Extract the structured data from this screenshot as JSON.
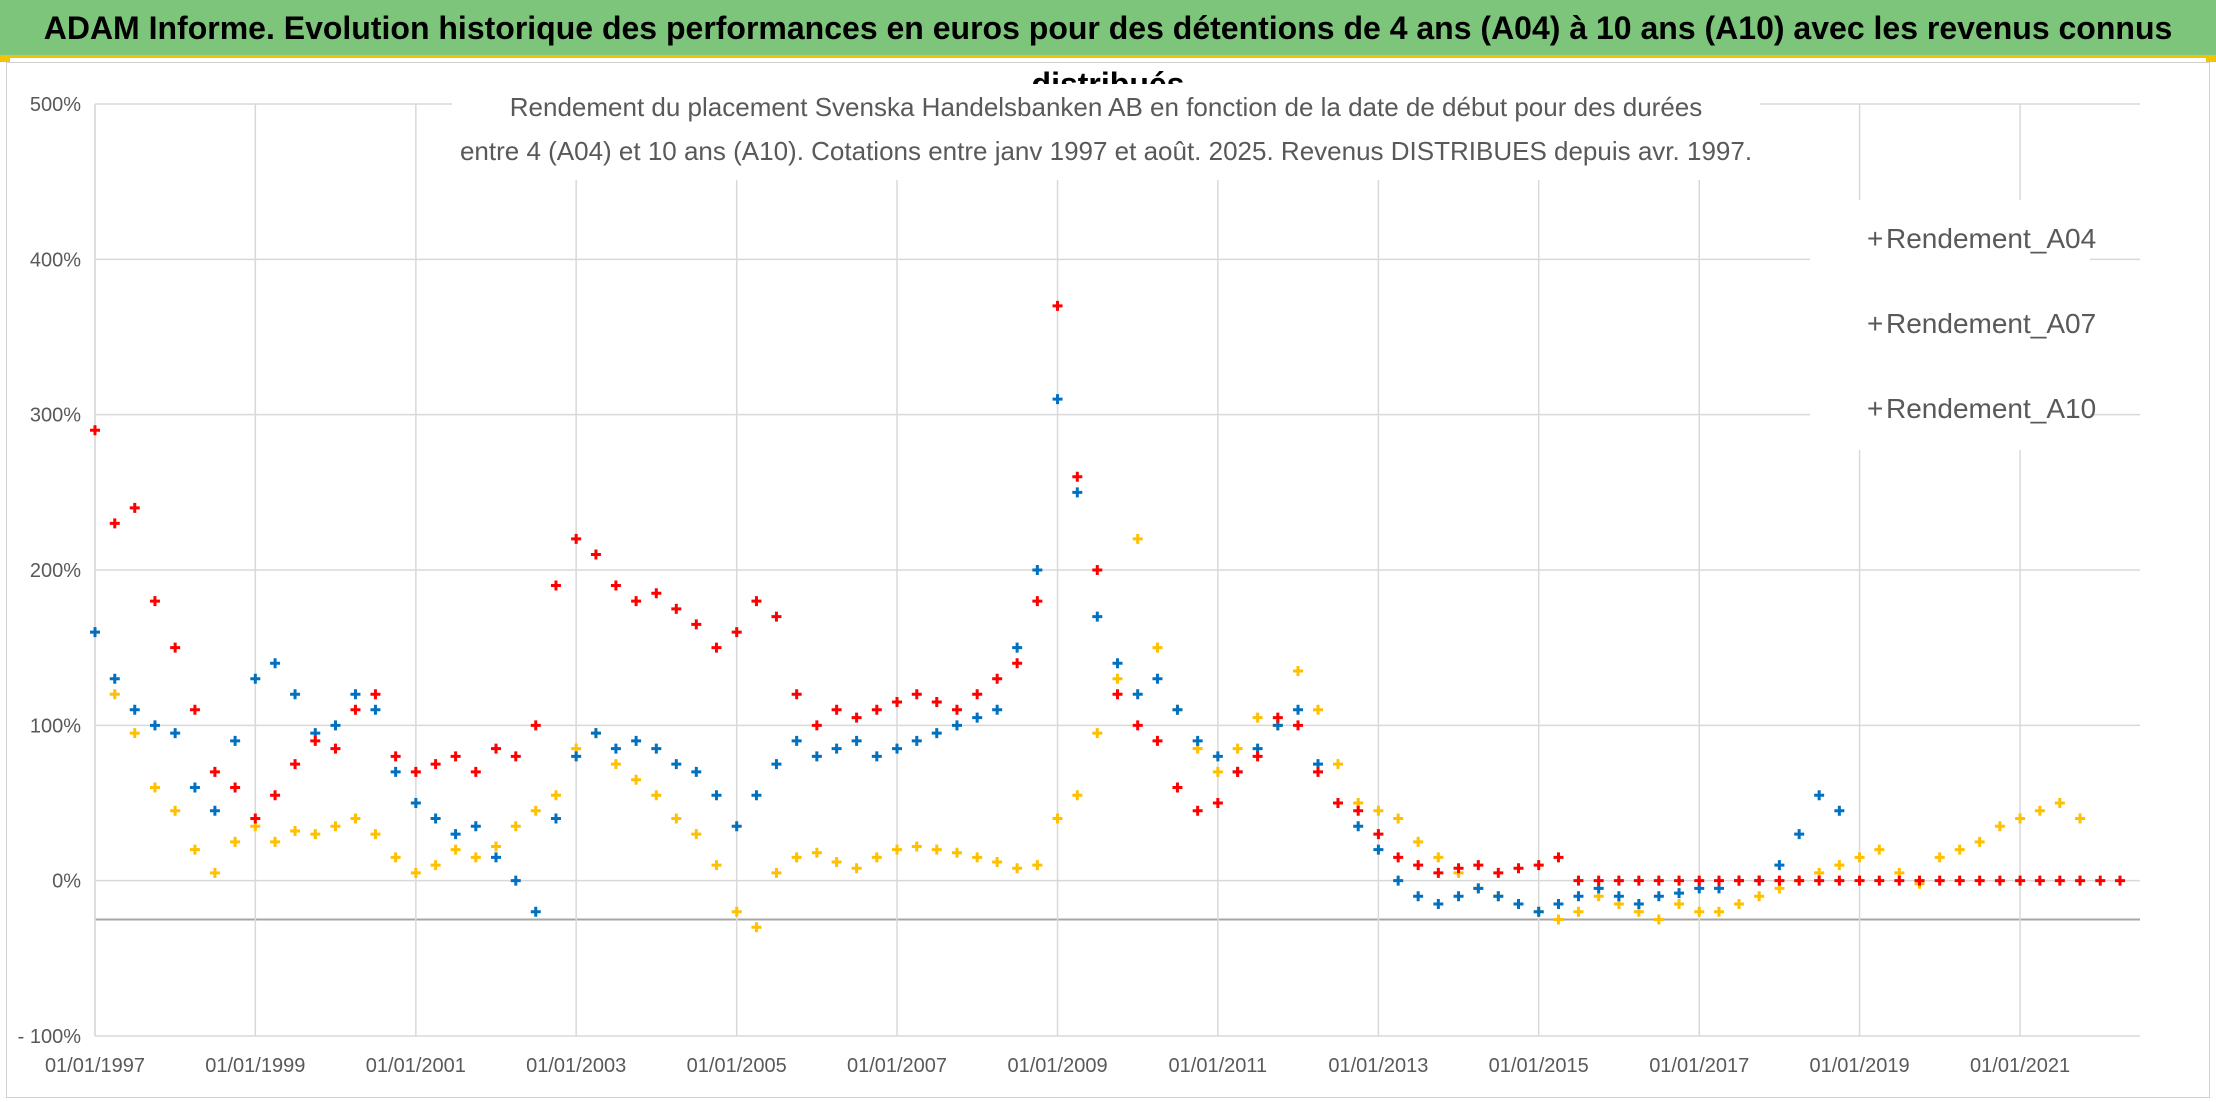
{
  "banner": {
    "title": "ADAM Informe. Evolution historique des performances en euros pour des détentions de 4 ans (A04) à 10 ans (A10) avec les revenus connus distribués"
  },
  "colors": {
    "banner_bg": "#7cc57a",
    "accent": "#f2c300",
    "A04": "#ffc000",
    "A07": "#0070c0",
    "A10": "#ff0000",
    "grid": "#d9d9d9",
    "text": "#595959"
  },
  "chart_data": {
    "type": "scatter",
    "title": [
      "Rendement du placement Svenska Handelsbanken AB en fonction de la date de début pour des durées",
      "entre 4 (A04) et 10 ans (A10). Cotations entre janv 1997 et août. 2025. Revenus DISTRIBUES depuis avr. 1997."
    ],
    "xlabel": "",
    "ylabel": "",
    "x_range": [
      "1997-01-01",
      "2022-07-01"
    ],
    "ylim": [
      -100,
      500
    ],
    "y_ticks": [
      -100,
      0,
      100,
      200,
      300,
      400,
      500
    ],
    "y_tick_labels": [
      "- 100%",
      "0%",
      "100%",
      "200%",
      "300%",
      "400%",
      "500%"
    ],
    "x_tick_labels": [
      "01/01/1997",
      "01/01/1999",
      "01/01/2001",
      "01/01/2003",
      "01/01/2005",
      "01/01/2007",
      "01/01/2009",
      "01/01/2011",
      "01/01/2013",
      "01/01/2015",
      "01/01/2017",
      "01/01/2019",
      "01/01/2021"
    ],
    "x_tick_dates": [
      "1997-01-01",
      "1999-01-01",
      "2001-01-01",
      "2003-01-01",
      "2005-01-01",
      "2007-01-01",
      "2009-01-01",
      "2011-01-01",
      "2013-01-01",
      "2015-01-01",
      "2017-01-01",
      "2019-01-01",
      "2021-01-01"
    ],
    "grid": true,
    "legend_position": "top-right",
    "series": [
      {
        "name": "Rendement_A04",
        "color": "#ffc000",
        "x": [
          "1997-01-01",
          "1997-04-01",
          "1997-07-01",
          "1997-10-01",
          "1998-01-01",
          "1998-04-01",
          "1998-07-01",
          "1998-10-01",
          "1999-01-01",
          "1999-04-01",
          "1999-07-01",
          "1999-10-01",
          "2000-01-01",
          "2000-04-01",
          "2000-07-01",
          "2000-10-01",
          "2001-01-01",
          "2001-04-01",
          "2001-07-01",
          "2001-10-01",
          "2002-01-01",
          "2002-04-01",
          "2002-07-01",
          "2002-10-01",
          "2003-01-01",
          "2003-04-01",
          "2003-07-01",
          "2003-10-01",
          "2004-01-01",
          "2004-04-01",
          "2004-07-01",
          "2004-10-01",
          "2005-01-01",
          "2005-04-01",
          "2005-07-01",
          "2005-10-01",
          "2006-01-01",
          "2006-04-01",
          "2006-07-01",
          "2006-10-01",
          "2007-01-01",
          "2007-04-01",
          "2007-07-01",
          "2007-10-01",
          "2008-01-01",
          "2008-04-01",
          "2008-07-01",
          "2008-10-01",
          "2009-01-01",
          "2009-04-01",
          "2009-07-01",
          "2009-10-01",
          "2010-01-01",
          "2010-04-01",
          "2010-07-01",
          "2010-10-01",
          "2011-01-01",
          "2011-04-01",
          "2011-07-01",
          "2011-10-01",
          "2012-01-01",
          "2012-04-01",
          "2012-07-01",
          "2012-10-01",
          "2013-01-01",
          "2013-04-01",
          "2013-07-01",
          "2013-10-01",
          "2014-01-01",
          "2014-04-01",
          "2014-07-01",
          "2014-10-01",
          "2015-01-01",
          "2015-04-01",
          "2015-07-01",
          "2015-10-01",
          "2016-01-01",
          "2016-04-01",
          "2016-07-01",
          "2016-10-01",
          "2017-01-01",
          "2017-04-01",
          "2017-07-01",
          "2017-10-01",
          "2018-01-01",
          "2018-04-01",
          "2018-07-01",
          "2018-10-01",
          "2019-01-01",
          "2019-04-01",
          "2019-07-01",
          "2019-10-01",
          "2020-01-01",
          "2020-04-01",
          "2020-07-01",
          "2020-10-01",
          "2021-01-01",
          "2021-04-01",
          "2021-07-01",
          "2021-10-01"
        ],
        "y": [
          160,
          120,
          95,
          60,
          45,
          20,
          5,
          25,
          35,
          25,
          32,
          30,
          35,
          40,
          30,
          15,
          5,
          10,
          20,
          15,
          22,
          35,
          45,
          55,
          85,
          95,
          75,
          65,
          55,
          40,
          30,
          10,
          -20,
          -30,
          5,
          15,
          18,
          12,
          8,
          15,
          20,
          22,
          20,
          18,
          15,
          12,
          8,
          10,
          40,
          55,
          95,
          130,
          220,
          150,
          110,
          85,
          70,
          85,
          105,
          100,
          135,
          110,
          75,
          50,
          45,
          40,
          25,
          15,
          5,
          -5,
          -10,
          -15,
          -20,
          -25,
          -20,
          -10,
          -15,
          -20,
          -25,
          -15,
          -20,
          -20,
          -15,
          -10,
          -5,
          0,
          5,
          10,
          15,
          20,
          5,
          -2,
          15,
          20,
          25,
          35,
          40,
          45,
          50,
          40
        ]
      },
      {
        "name": "Rendement_A07",
        "color": "#0070c0",
        "x": [
          "1997-01-01",
          "1997-04-01",
          "1997-07-01",
          "1997-10-01",
          "1998-01-01",
          "1998-04-01",
          "1998-07-01",
          "1998-10-01",
          "1999-01-01",
          "1999-04-01",
          "1999-07-01",
          "1999-10-01",
          "2000-01-01",
          "2000-04-01",
          "2000-07-01",
          "2000-10-01",
          "2001-01-01",
          "2001-04-01",
          "2001-07-01",
          "2001-10-01",
          "2002-01-01",
          "2002-04-01",
          "2002-07-01",
          "2002-10-01",
          "2003-01-01",
          "2003-04-01",
          "2003-07-01",
          "2003-10-01",
          "2004-01-01",
          "2004-04-01",
          "2004-07-01",
          "2004-10-01",
          "2005-01-01",
          "2005-04-01",
          "2005-07-01",
          "2005-10-01",
          "2006-01-01",
          "2006-04-01",
          "2006-07-01",
          "2006-10-01",
          "2007-01-01",
          "2007-04-01",
          "2007-07-01",
          "2007-10-01",
          "2008-01-01",
          "2008-04-01",
          "2008-07-01",
          "2008-10-01",
          "2009-01-01",
          "2009-04-01",
          "2009-07-01",
          "2009-10-01",
          "2010-01-01",
          "2010-04-01",
          "2010-07-01",
          "2010-10-01",
          "2011-01-01",
          "2011-04-01",
          "2011-07-01",
          "2011-10-01",
          "2012-01-01",
          "2012-04-01",
          "2012-07-01",
          "2012-10-01",
          "2013-01-01",
          "2013-04-01",
          "2013-07-01",
          "2013-10-01",
          "2014-01-01",
          "2014-04-01",
          "2014-07-01",
          "2014-10-01",
          "2015-01-01",
          "2015-04-01",
          "2015-07-01",
          "2015-10-01",
          "2016-01-01",
          "2016-04-01",
          "2016-07-01",
          "2016-10-01",
          "2017-01-01",
          "2017-04-01",
          "2017-07-01",
          "2017-10-01",
          "2018-01-01",
          "2018-04-01",
          "2018-07-01",
          "2018-10-01"
        ],
        "y": [
          160,
          130,
          110,
          100,
          95,
          60,
          45,
          90,
          130,
          140,
          120,
          95,
          100,
          120,
          110,
          70,
          50,
          40,
          30,
          35,
          15,
          0,
          -20,
          40,
          80,
          95,
          85,
          90,
          85,
          75,
          70,
          55,
          35,
          55,
          75,
          90,
          80,
          85,
          90,
          80,
          85,
          90,
          95,
          100,
          105,
          110,
          150,
          200,
          310,
          250,
          170,
          140,
          120,
          130,
          110,
          90,
          80,
          70,
          85,
          100,
          110,
          75,
          50,
          35,
          20,
          0,
          -10,
          -15,
          -10,
          -5,
          -10,
          -15,
          -20,
          -15,
          -10,
          -5,
          -10,
          -15,
          -10,
          -8,
          -5,
          -5,
          0,
          0,
          10,
          30,
          55,
          45
        ]
      },
      {
        "name": "Rendement_A10",
        "color": "#ff0000",
        "x": [
          "1997-01-01",
          "1997-04-01",
          "1997-07-01",
          "1997-10-01",
          "1998-01-01",
          "1998-04-01",
          "1998-07-01",
          "1998-10-01",
          "1999-01-01",
          "1999-04-01",
          "1999-07-01",
          "1999-10-01",
          "2000-01-01",
          "2000-04-01",
          "2000-07-01",
          "2000-10-01",
          "2001-01-01",
          "2001-04-01",
          "2001-07-01",
          "2001-10-01",
          "2002-01-01",
          "2002-04-01",
          "2002-07-01",
          "2002-10-01",
          "2003-01-01",
          "2003-04-01",
          "2003-07-01",
          "2003-10-01",
          "2004-01-01",
          "2004-04-01",
          "2004-07-01",
          "2004-10-01",
          "2005-01-01",
          "2005-04-01",
          "2005-07-01",
          "2005-10-01",
          "2006-01-01",
          "2006-04-01",
          "2006-07-01",
          "2006-10-01",
          "2007-01-01",
          "2007-04-01",
          "2007-07-01",
          "2007-10-01",
          "2008-01-01",
          "2008-04-01",
          "2008-07-01",
          "2008-10-01",
          "2009-01-01",
          "2009-04-01",
          "2009-07-01",
          "2009-10-01",
          "2010-01-01",
          "2010-04-01",
          "2010-07-01",
          "2010-10-01",
          "2011-01-01",
          "2011-04-01",
          "2011-07-01",
          "2011-10-01",
          "2012-01-01",
          "2012-04-01",
          "2012-07-01",
          "2012-10-01",
          "2013-01-01",
          "2013-04-01",
          "2013-07-01",
          "2013-10-01",
          "2014-01-01",
          "2014-04-01",
          "2014-07-01",
          "2014-10-01",
          "2015-01-01",
          "2015-04-01",
          "2015-07-01",
          "2015-10-01",
          "2016-01-01",
          "2016-04-01",
          "2016-07-01",
          "2016-10-01",
          "2017-01-01",
          "2017-04-01",
          "2017-07-01",
          "2017-10-01",
          "2018-01-01",
          "2018-04-01",
          "2018-07-01",
          "2018-10-01",
          "2019-01-01",
          "2019-04-01",
          "2019-07-01",
          "2019-10-01",
          "2020-01-01",
          "2020-04-01",
          "2020-07-01",
          "2020-10-01",
          "2021-01-01",
          "2021-04-01",
          "2021-07-01",
          "2021-10-01",
          "2022-01-01",
          "2022-04-01"
        ],
        "y": [
          290,
          230,
          240,
          180,
          150,
          110,
          70,
          60,
          40,
          55,
          75,
          90,
          85,
          110,
          120,
          80,
          70,
          75,
          80,
          70,
          85,
          80,
          100,
          190,
          220,
          210,
          190,
          180,
          185,
          175,
          165,
          150,
          160,
          180,
          170,
          120,
          100,
          110,
          105,
          110,
          115,
          120,
          115,
          110,
          120,
          130,
          140,
          180,
          370,
          260,
          200,
          120,
          100,
          90,
          60,
          45,
          50,
          70,
          80,
          105,
          100,
          70,
          50,
          45,
          30,
          15,
          10,
          5,
          8,
          10,
          5,
          8,
          10,
          15,
          0,
          0,
          0,
          0,
          0,
          0,
          0,
          0,
          0,
          0,
          0,
          0,
          0,
          0,
          0,
          0,
          0,
          0,
          0,
          0,
          0,
          0,
          0,
          0,
          0,
          0,
          0,
          0
        ]
      }
    ]
  }
}
